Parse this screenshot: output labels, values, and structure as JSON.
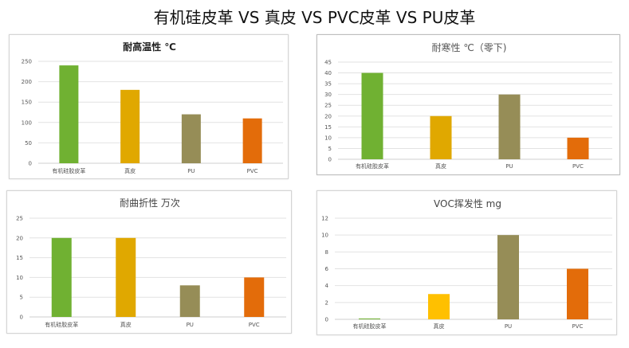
{
  "page_title": "有机硅皮革 VS 真皮 VS PVC皮革 VS PU皮革",
  "colors": {
    "silicone": "#70b132",
    "leather": "#e0a800",
    "pu": "#968d57",
    "pvc": "#e36c0a",
    "grid": "#e2e2e2",
    "axis": "#cfcfcf"
  },
  "chart_data": [
    {
      "type": "bar",
      "title": "耐高温性 ℃",
      "categories": [
        "有机硅胶皮革",
        "真皮",
        "PU",
        "PVC"
      ],
      "values": [
        240,
        180,
        120,
        110
      ],
      "ylim": [
        0,
        250
      ],
      "yticks": [
        0,
        50,
        100,
        150,
        200,
        250
      ],
      "bar_colors": [
        "#70b132",
        "#e0a800",
        "#968d57",
        "#e36c0a"
      ],
      "grid": true,
      "legend": "none"
    },
    {
      "type": "bar",
      "title": "耐寒性 ℃（零下)",
      "categories": [
        "有机硅胶皮革",
        "真皮",
        "PU",
        "PVC"
      ],
      "values": [
        40,
        20,
        30,
        10
      ],
      "ylim": [
        0,
        45
      ],
      "yticks": [
        0,
        5,
        10,
        15,
        20,
        25,
        30,
        35,
        40,
        45
      ],
      "bar_colors": [
        "#70b132",
        "#e0a800",
        "#968d57",
        "#e36c0a"
      ],
      "grid": true,
      "legend": "none"
    },
    {
      "type": "bar",
      "title": "耐曲折性 万次",
      "categories": [
        "有机硅胶皮革",
        "真皮",
        "PU",
        "PVC"
      ],
      "values": [
        20,
        20,
        8,
        10
      ],
      "ylim": [
        0,
        25
      ],
      "yticks": [
        0,
        5,
        10,
        15,
        20,
        25
      ],
      "bar_colors": [
        "#70b132",
        "#e0a800",
        "#968d57",
        "#e36c0a"
      ],
      "grid": true,
      "legend": "none"
    },
    {
      "type": "bar",
      "title": "VOC挥发性 mg",
      "categories": [
        "有机硅胶皮革",
        "真皮",
        "PU",
        "PVC"
      ],
      "values": [
        0.1,
        3,
        10,
        6
      ],
      "ylim": [
        0,
        12
      ],
      "yticks": [
        0,
        2,
        4,
        6,
        8,
        10,
        12
      ],
      "bar_colors": [
        "#70b132",
        "#ffc000",
        "#968d57",
        "#e36c0a"
      ],
      "grid": true,
      "legend": "none"
    }
  ]
}
